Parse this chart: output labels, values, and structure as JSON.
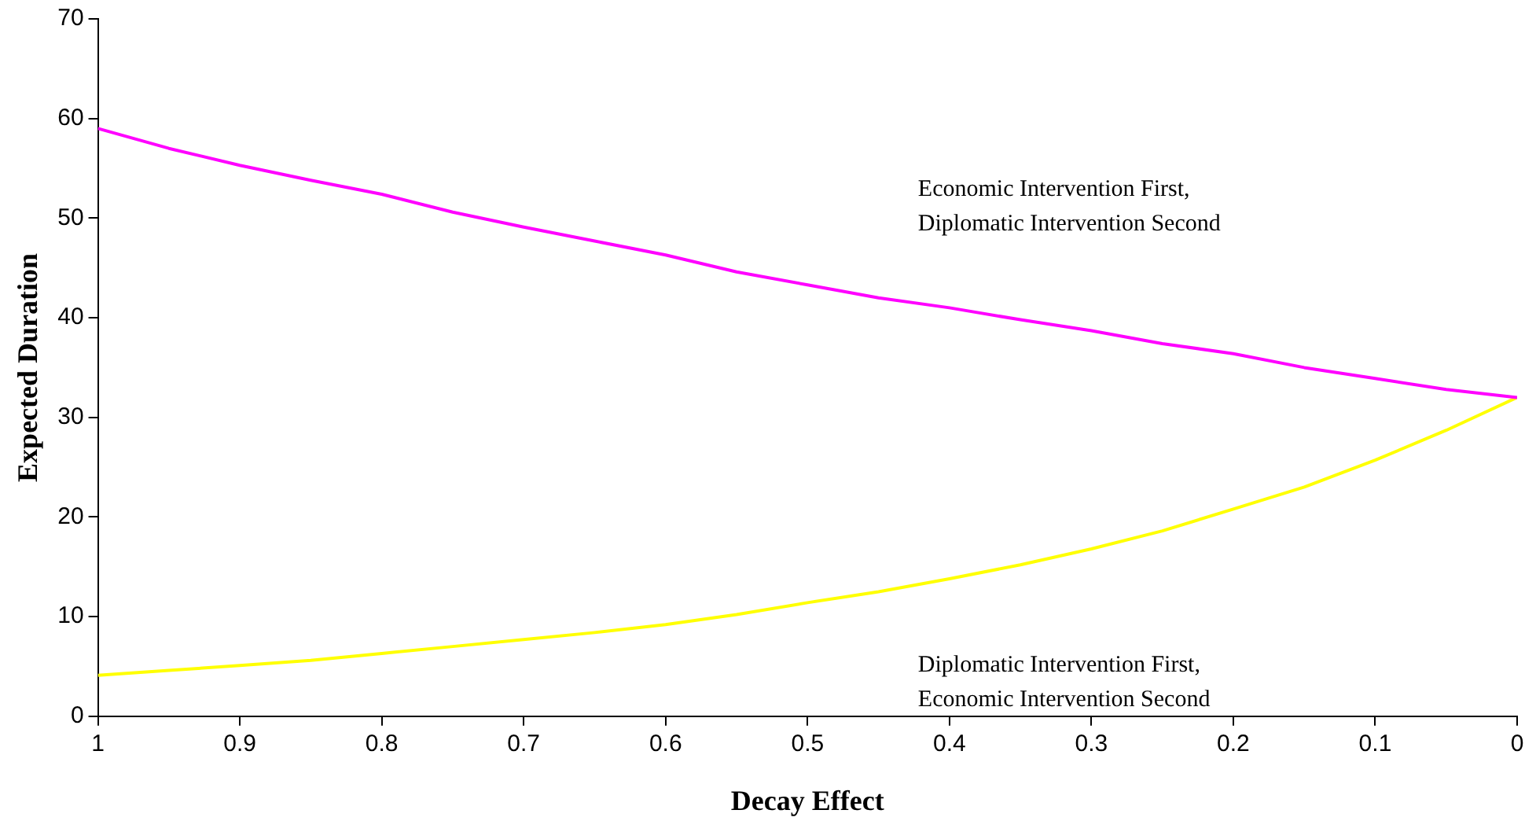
{
  "chart_data": {
    "type": "line",
    "xlabel": "Decay Effect",
    "ylabel": "Expected Duration",
    "x": [
      1,
      0.95,
      0.9,
      0.85,
      0.8,
      0.75,
      0.7,
      0.65,
      0.6,
      0.55,
      0.5,
      0.45,
      0.4,
      0.35,
      0.3,
      0.25,
      0.2,
      0.15,
      0.1,
      0.05,
      0
    ],
    "series": [
      {
        "name": "Economic Intervention First, Diplomatic Intervention Second",
        "color": "#ff00ff",
        "values": [
          59,
          57,
          55.3,
          53.8,
          52.4,
          50.6,
          49.1,
          47.7,
          46.3,
          44.6,
          43.3,
          42,
          41,
          39.8,
          38.7,
          37.4,
          36.4,
          35,
          33.9,
          32.8,
          32
        ]
      },
      {
        "name": "Diplomatic Intervention First, Economic Intervention Second",
        "color": "#ffff00",
        "values": [
          4.1,
          4.6,
          5.1,
          5.6,
          6.3,
          7,
          7.7,
          8.4,
          9.2,
          10.2,
          11.4,
          12.5,
          13.8,
          15.2,
          16.8,
          18.6,
          20.8,
          23,
          25.7,
          28.7,
          32
        ]
      }
    ],
    "xlim": [
      1,
      0
    ],
    "xticks": [
      1,
      0.9,
      0.8,
      0.7,
      0.6,
      0.5,
      0.4,
      0.3,
      0.2,
      0.1,
      0
    ],
    "ylim": [
      0,
      70
    ],
    "yticks": [
      0,
      10,
      20,
      30,
      40,
      50,
      60,
      70
    ],
    "grid": false,
    "legend": false,
    "marker": "none",
    "line_style": "solid"
  }
}
